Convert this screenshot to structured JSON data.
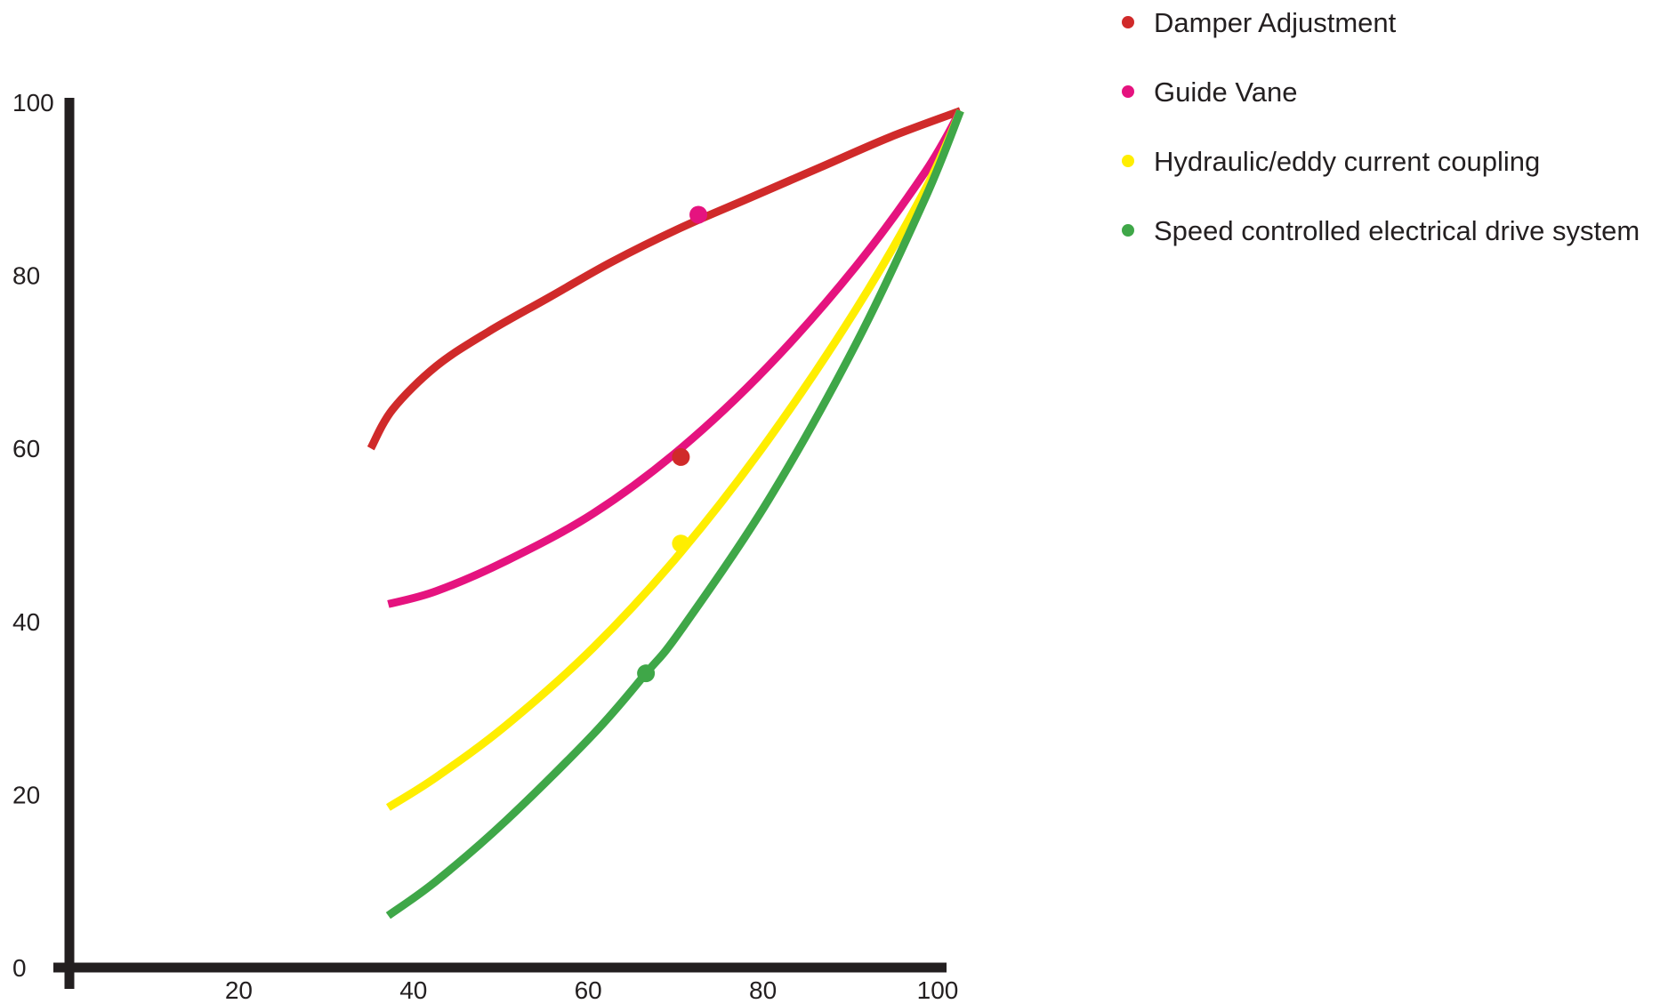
{
  "chart_data": {
    "type": "line",
    "title": "",
    "xlabel": "",
    "ylabel": "",
    "xlim": [
      0,
      102
    ],
    "ylim": [
      0,
      102
    ],
    "x_ticks": [
      20,
      40,
      60,
      80,
      100
    ],
    "x_tick_labels": [
      "20",
      "40",
      "60",
      "80",
      "100"
    ],
    "y_ticks": [
      0,
      20,
      40,
      60,
      80,
      100
    ],
    "y_tick_labels": [
      "0",
      "20",
      "40",
      "60",
      "80",
      "100"
    ],
    "grid": false,
    "legend_position": "top-right",
    "series": [
      {
        "name": "Damper Adjustment",
        "color": "#d02a2a",
        "x": [
          34.5,
          37,
          42,
          48,
          55,
          62,
          70,
          78,
          86,
          94,
          102
        ],
        "y": [
          60,
          64.5,
          69.5,
          73.5,
          77.5,
          81.5,
          85.5,
          89,
          92.5,
          96,
          99
        ],
        "marker": {
          "x": 70,
          "y": 59,
          "color": "#d02a2a",
          "note": "marker drawn on Guide Vane curve"
        }
      },
      {
        "name": "Guide Vane",
        "color": "#e5137f",
        "x": [
          36.5,
          42,
          50,
          60,
          70,
          80,
          90,
          98,
          102
        ],
        "y": [
          42,
          43.5,
          47,
          52.5,
          60,
          69.5,
          81,
          92,
          99
        ],
        "marker": {
          "x": 72,
          "y": 87,
          "color": "#e5137f",
          "note": "marker drawn on Damper Adjustment curve"
        }
      },
      {
        "name": "Hydraulic/eddy current coupling",
        "color": "#ffee00",
        "x": [
          36.5,
          42,
          50,
          60,
          70,
          80,
          90,
          98,
          102
        ],
        "y": [
          18.5,
          22,
          28,
          37,
          48,
          61,
          76,
          90,
          99
        ],
        "marker": {
          "x": 70,
          "y": 49,
          "color": "#ffee00"
        }
      },
      {
        "name": "Speed controlled electrical drive system",
        "color": "#3fa748",
        "x": [
          36.5,
          42,
          50,
          60,
          66,
          70,
          80,
          90,
          98,
          102
        ],
        "y": [
          6,
          10,
          17,
          27,
          34,
          39,
          54,
          72,
          89,
          99
        ],
        "marker": {
          "x": 66,
          "y": 34,
          "color": "#3fa748"
        }
      }
    ]
  },
  "colors": {
    "axis": "#231f20",
    "text": "#231f20",
    "background": "#ffffff"
  }
}
